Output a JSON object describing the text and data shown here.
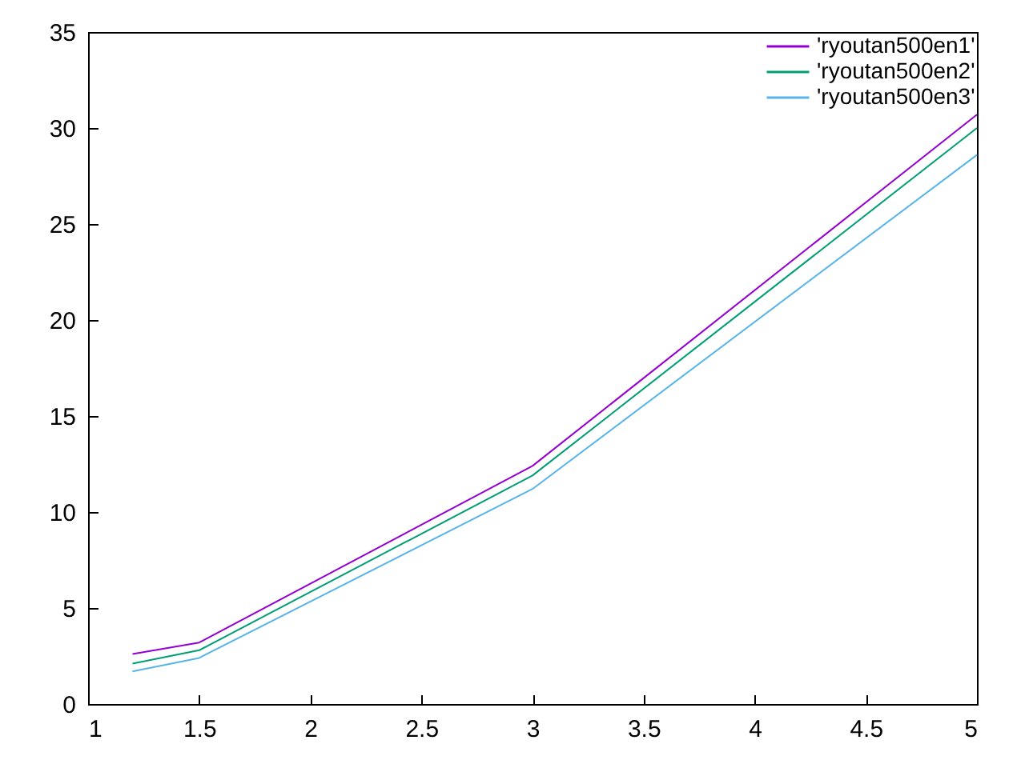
{
  "chart_data": {
    "type": "line",
    "series": [
      {
        "name": "'ryoutan500en1'",
        "color": "#9400d3",
        "x": [
          1.2,
          1.5,
          3,
          5
        ],
        "values": [
          2.6,
          3.2,
          12.4,
          30.7
        ]
      },
      {
        "name": "'ryoutan500en2'",
        "color": "#009e73",
        "x": [
          1.2,
          1.5,
          3,
          5
        ],
        "values": [
          2.1,
          2.8,
          11.9,
          30.0
        ]
      },
      {
        "name": "'ryoutan500en3'",
        "color": "#56b4e9",
        "x": [
          1.2,
          1.5,
          3,
          5
        ],
        "values": [
          1.7,
          2.4,
          11.2,
          28.6
        ]
      }
    ],
    "xlim": [
      1,
      5
    ],
    "xticks": [
      1,
      1.5,
      2,
      2.5,
      3,
      3.5,
      4,
      4.5,
      5
    ],
    "ylim": [
      0,
      35
    ],
    "yticks": [
      0,
      5,
      10,
      15,
      20,
      25,
      30,
      35
    ],
    "legend": "top right",
    "marker": "none",
    "line_style": "solid"
  }
}
